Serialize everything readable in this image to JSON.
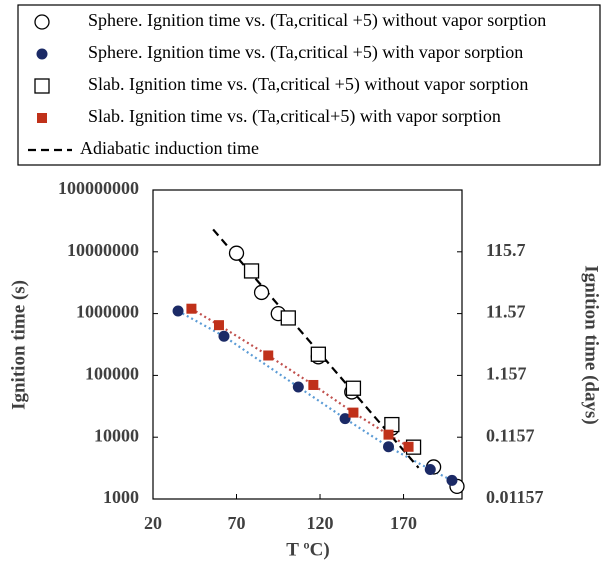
{
  "chart_data": {
    "type": "scatter",
    "xlabel": "T ºC)",
    "ylabel": "Ignition time (s)",
    "y2label": "Ignition time (days)",
    "xlim": [
      20,
      205
    ],
    "xticks": [
      20,
      70,
      120,
      170
    ],
    "ylim": [
      1000,
      100000000
    ],
    "yticks": [
      1000,
      10000,
      100000,
      1000000,
      10000000,
      100000000
    ],
    "ylog": true,
    "y2lim": [
      0.01157,
      1157.4
    ],
    "y2ticks": [
      0.01157,
      0.1157,
      1.157,
      11.57,
      115.7
    ],
    "y2log": true,
    "grid": false,
    "series": [
      {
        "name": "Sphere. Ignition time vs. (Ta,critical +5) without vapor sorption",
        "color": "#000000",
        "marker": "circle-open",
        "line": "none",
        "x": [
          70,
          85,
          95,
          119,
          139,
          163,
          188,
          202
        ],
        "values": [
          9500000,
          2200000,
          1000000,
          200000,
          54000,
          14000,
          3300,
          1600
        ]
      },
      {
        "name": "Sphere. Ignition time vs. (Ta,critical +5) with vapor sorption",
        "color": "#1b2a66",
        "marker": "circle",
        "line": "dotted",
        "line_color": "#5b9bd5",
        "x": [
          35,
          62.5,
          107,
          135,
          161,
          186,
          199
        ],
        "values": [
          1100000,
          430000,
          65000,
          20000,
          7000,
          3000,
          2000
        ]
      },
      {
        "name": "Slab. Ignition time vs. (Ta,critical +5) without vapor sorption",
        "color": "#000000",
        "marker": "square-open",
        "line": "none",
        "x": [
          79,
          101,
          119,
          140,
          163,
          176
        ],
        "values": [
          4900000,
          850000,
          220000,
          62000,
          16000,
          6900
        ]
      },
      {
        "name": "Slab. Ignition time vs. (Ta,critical+5) with vapor sorption",
        "color": "#c0311a",
        "marker": "square",
        "line": "dotted",
        "line_color": "#c0504d",
        "x": [
          43,
          59.5,
          89,
          116,
          140,
          161,
          173
        ],
        "values": [
          1200000,
          650000,
          210000,
          70000,
          25000,
          11000,
          7000
        ]
      },
      {
        "name": "Adiabatic induction time",
        "color": "#000000",
        "marker": "none",
        "line": "dashed",
        "x": [
          56,
          179
        ],
        "values": [
          23000000,
          3200
        ]
      }
    ]
  }
}
